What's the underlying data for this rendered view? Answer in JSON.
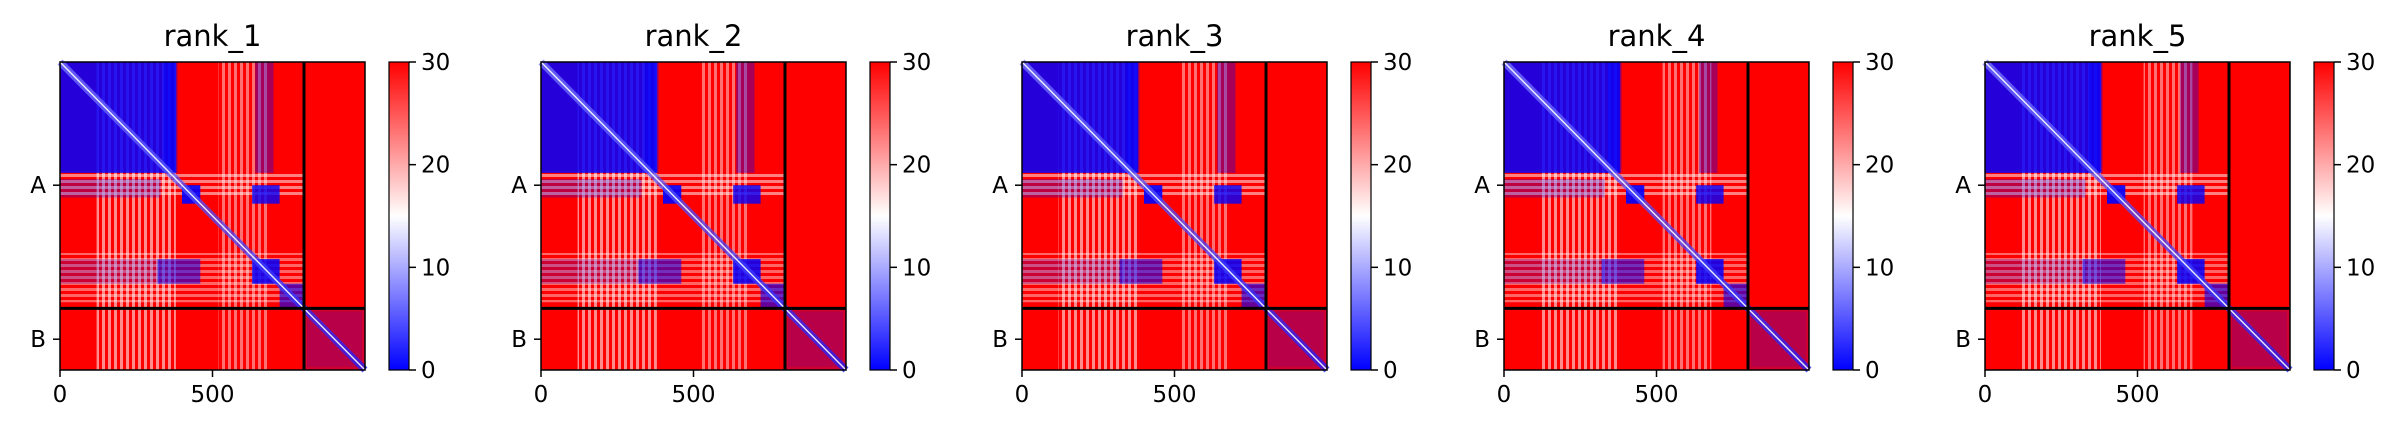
{
  "chart_data": [
    {
      "type": "heatmap",
      "title": "rank_1",
      "xticks": [
        "0",
        "500"
      ],
      "yticks": [
        "A",
        "B"
      ],
      "colorbar_ticks": [
        "0",
        "10",
        "20",
        "30"
      ],
      "xlim": [
        0,
        1000
      ],
      "chain_boundary": 800,
      "vmin": 0,
      "vmax": 30,
      "colormap": "bwr"
    },
    {
      "type": "heatmap",
      "title": "rank_2",
      "xticks": [
        "0",
        "500"
      ],
      "yticks": [
        "A",
        "B"
      ],
      "colorbar_ticks": [
        "0",
        "10",
        "20",
        "30"
      ],
      "xlim": [
        0,
        1000
      ],
      "chain_boundary": 800,
      "vmin": 0,
      "vmax": 30,
      "colormap": "bwr"
    },
    {
      "type": "heatmap",
      "title": "rank_3",
      "xticks": [
        "0",
        "500"
      ],
      "yticks": [
        "A",
        "B"
      ],
      "colorbar_ticks": [
        "0",
        "10",
        "20",
        "30"
      ],
      "xlim": [
        0,
        1000
      ],
      "chain_boundary": 800,
      "vmin": 0,
      "vmax": 30,
      "colormap": "bwr"
    },
    {
      "type": "heatmap",
      "title": "rank_4",
      "xticks": [
        "0",
        "500"
      ],
      "yticks": [
        "A",
        "B"
      ],
      "colorbar_ticks": [
        "0",
        "10",
        "20",
        "30"
      ],
      "xlim": [
        0,
        1000
      ],
      "chain_boundary": 800,
      "vmin": 0,
      "vmax": 30,
      "colormap": "bwr"
    },
    {
      "type": "heatmap",
      "title": "rank_5",
      "xticks": [
        "0",
        "500"
      ],
      "yticks": [
        "A",
        "B"
      ],
      "colorbar_ticks": [
        "0",
        "10",
        "20",
        "30"
      ],
      "xlim": [
        0,
        1000
      ],
      "chain_boundary": 800,
      "vmin": 0,
      "vmax": 30,
      "colormap": "bwr"
    }
  ],
  "colors": {
    "low": "#0000ff",
    "mid": "#ffffff",
    "high": "#ff0000",
    "divider": "#000000"
  }
}
